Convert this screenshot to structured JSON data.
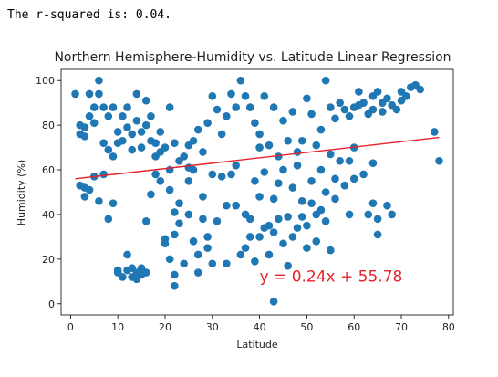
{
  "output": {
    "text": "The r-squared is: 0.04."
  },
  "colors": {
    "points": "#1f77b4",
    "line": "#e8222a",
    "annotation": "#e8222a",
    "axis": "#000000"
  },
  "chart_data": {
    "type": "scatter",
    "title": "Northern Hemisphere-Humidity vs. Latitude Linear Regression",
    "xlabel": "Latitude",
    "ylabel": "Humidity (%)",
    "xlim": [
      -2,
      81
    ],
    "ylim": [
      -5,
      105
    ],
    "xticks": [
      0,
      10,
      20,
      30,
      40,
      50,
      60,
      70,
      80
    ],
    "yticks": [
      0,
      20,
      40,
      60,
      80,
      100
    ],
    "grid": false,
    "regression": {
      "slope": 0.24,
      "intercept": 55.78,
      "x_range": [
        1,
        78
      ]
    },
    "annotation": {
      "text": "y = 0.24x + 55.78",
      "x": 40,
      "y": 10
    },
    "points": [
      [
        1,
        94
      ],
      [
        2,
        76
      ],
      [
        2,
        80
      ],
      [
        3,
        79
      ],
      [
        3,
        75
      ],
      [
        4,
        94
      ],
      [
        4,
        84
      ],
      [
        5,
        88
      ],
      [
        5,
        81
      ],
      [
        6,
        100
      ],
      [
        6,
        94
      ],
      [
        7,
        88
      ],
      [
        7,
        72
      ],
      [
        8,
        69
      ],
      [
        8,
        84
      ],
      [
        9,
        88
      ],
      [
        9,
        66
      ],
      [
        10,
        77
      ],
      [
        10,
        72
      ],
      [
        11,
        73
      ],
      [
        11,
        84
      ],
      [
        12,
        88
      ],
      [
        12,
        79
      ],
      [
        13,
        76
      ],
      [
        13,
        69
      ],
      [
        14,
        94
      ],
      [
        14,
        82
      ],
      [
        15,
        77
      ],
      [
        15,
        70
      ],
      [
        16,
        91
      ],
      [
        16,
        80
      ],
      [
        17,
        73
      ],
      [
        17,
        84
      ],
      [
        18,
        66
      ],
      [
        18,
        72
      ],
      [
        19,
        77
      ],
      [
        19,
        68
      ],
      [
        20,
        70
      ],
      [
        21,
        88
      ],
      [
        21,
        60
      ],
      [
        22,
        72
      ],
      [
        23,
        64
      ],
      [
        24,
        66
      ],
      [
        25,
        71
      ],
      [
        25,
        61
      ],
      [
        26,
        73
      ],
      [
        27,
        78
      ],
      [
        28,
        68
      ],
      [
        29,
        81
      ],
      [
        30,
        93
      ],
      [
        31,
        87
      ],
      [
        32,
        76
      ],
      [
        33,
        84
      ],
      [
        34,
        94
      ],
      [
        35,
        88
      ],
      [
        36,
        100
      ],
      [
        37,
        93
      ],
      [
        38,
        88
      ],
      [
        39,
        81
      ],
      [
        40,
        76
      ],
      [
        40,
        70
      ],
      [
        41,
        93
      ],
      [
        42,
        71
      ],
      [
        43,
        88
      ],
      [
        44,
        66
      ],
      [
        45,
        82
      ],
      [
        46,
        73
      ],
      [
        47,
        86
      ],
      [
        48,
        68
      ],
      [
        49,
        73
      ],
      [
        50,
        92
      ],
      [
        51,
        85
      ],
      [
        52,
        71
      ],
      [
        53,
        78
      ],
      [
        54,
        100
      ],
      [
        55,
        88
      ],
      [
        56,
        83
      ],
      [
        57,
        90
      ],
      [
        58,
        87
      ],
      [
        59,
        84
      ],
      [
        60,
        88
      ],
      [
        61,
        95
      ],
      [
        61,
        89
      ],
      [
        62,
        90
      ],
      [
        63,
        85
      ],
      [
        64,
        93
      ],
      [
        64,
        87
      ],
      [
        65,
        95
      ],
      [
        66,
        90
      ],
      [
        66,
        86
      ],
      [
        67,
        92
      ],
      [
        68,
        89
      ],
      [
        69,
        87
      ],
      [
        70,
        95
      ],
      [
        70,
        91
      ],
      [
        71,
        93
      ],
      [
        72,
        97
      ],
      [
        73,
        98
      ],
      [
        74,
        96
      ],
      [
        77,
        77
      ],
      [
        78,
        64
      ],
      [
        2,
        53
      ],
      [
        3,
        48
      ],
      [
        3,
        52
      ],
      [
        4,
        51
      ],
      [
        5,
        57
      ],
      [
        6,
        46
      ],
      [
        7,
        58
      ],
      [
        8,
        38
      ],
      [
        9,
        45
      ],
      [
        10,
        14
      ],
      [
        10,
        15
      ],
      [
        11,
        12
      ],
      [
        12,
        22
      ],
      [
        12,
        15
      ],
      [
        13,
        16
      ],
      [
        13,
        12
      ],
      [
        14,
        14
      ],
      [
        14,
        11
      ],
      [
        15,
        16
      ],
      [
        15,
        13
      ],
      [
        16,
        14
      ],
      [
        16,
        37
      ],
      [
        17,
        49
      ],
      [
        18,
        58
      ],
      [
        19,
        55
      ],
      [
        20,
        29
      ],
      [
        20,
        27
      ],
      [
        21,
        20
      ],
      [
        21,
        51
      ],
      [
        22,
        41
      ],
      [
        22,
        31
      ],
      [
        22,
        13
      ],
      [
        22,
        8
      ],
      [
        23,
        45
      ],
      [
        23,
        36
      ],
      [
        24,
        18
      ],
      [
        25,
        55
      ],
      [
        25,
        40
      ],
      [
        26,
        28
      ],
      [
        26,
        60
      ],
      [
        27,
        14
      ],
      [
        27,
        22
      ],
      [
        28,
        38
      ],
      [
        28,
        48
      ],
      [
        29,
        30
      ],
      [
        29,
        25
      ],
      [
        30,
        18
      ],
      [
        30,
        58
      ],
      [
        31,
        37
      ],
      [
        32,
        57
      ],
      [
        33,
        44
      ],
      [
        33,
        18
      ],
      [
        34,
        58
      ],
      [
        35,
        62
      ],
      [
        35,
        44
      ],
      [
        36,
        22
      ],
      [
        37,
        40
      ],
      [
        37,
        25
      ],
      [
        38,
        38
      ],
      [
        38,
        30
      ],
      [
        39,
        55
      ],
      [
        39,
        19
      ],
      [
        40,
        48
      ],
      [
        40,
        30
      ],
      [
        41,
        59
      ],
      [
        41,
        34
      ],
      [
        42,
        35
      ],
      [
        42,
        22
      ],
      [
        43,
        47
      ],
      [
        43,
        32
      ],
      [
        43,
        1
      ],
      [
        44,
        54
      ],
      [
        44,
        38
      ],
      [
        45,
        60
      ],
      [
        45,
        27
      ],
      [
        46,
        39
      ],
      [
        46,
        17
      ],
      [
        47,
        52
      ],
      [
        47,
        30
      ],
      [
        48,
        62
      ],
      [
        48,
        34
      ],
      [
        49,
        46
      ],
      [
        49,
        39
      ],
      [
        50,
        35
      ],
      [
        50,
        25
      ],
      [
        51,
        55
      ],
      [
        51,
        45
      ],
      [
        52,
        40
      ],
      [
        52,
        28
      ],
      [
        53,
        60
      ],
      [
        53,
        42
      ],
      [
        54,
        50
      ],
      [
        54,
        37
      ],
      [
        55,
        67
      ],
      [
        55,
        24
      ],
      [
        56,
        56
      ],
      [
        56,
        47
      ],
      [
        57,
        64
      ],
      [
        58,
        53
      ],
      [
        59,
        64
      ],
      [
        59,
        40
      ],
      [
        60,
        70
      ],
      [
        60,
        56
      ],
      [
        62,
        58
      ],
      [
        63,
        40
      ],
      [
        64,
        63
      ],
      [
        64,
        45
      ],
      [
        65,
        38
      ],
      [
        65,
        31
      ],
      [
        67,
        44
      ],
      [
        68,
        40
      ]
    ]
  }
}
